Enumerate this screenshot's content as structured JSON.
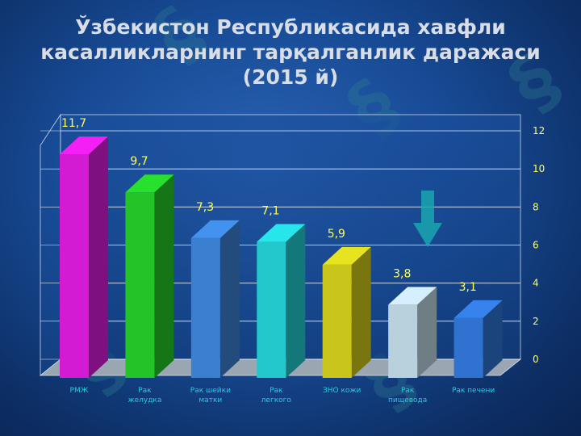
{
  "title": {
    "line1": "Ўзбекистон Республикасида хавфли",
    "line2": "касалликларнинг тарқалганлик даражаси",
    "line3": "(2015 й)"
  },
  "chart_data": {
    "type": "bar",
    "title": "Ўзбекистон Республикасида хавфли касалликларнинг тарқалганлик даражаси (2015 й)",
    "categories": [
      "РМЖ",
      "Рак желудка",
      "Рак шейки матки",
      "Рак легкого",
      "ЗНО кожи",
      "Рак пищевода",
      "Рак печени"
    ],
    "values": [
      11.7,
      9.7,
      7.3,
      7.1,
      5.9,
      3.8,
      3.1
    ],
    "value_labels": [
      "11,7",
      "9,7",
      "7,3",
      "7,1",
      "5,9",
      "3,8",
      "3,1"
    ],
    "bar_colors": [
      "#d41bd4",
      "#22c427",
      "#3a7fd0",
      "#22c8cc",
      "#c9c51a",
      "#b9d0dd",
      "#2f72cf"
    ],
    "ylim": [
      0,
      12
    ],
    "yticks": [
      0,
      2,
      4,
      6,
      8,
      10,
      12
    ],
    "grid": true,
    "y_axis_side": "right",
    "value_label_color": "#ffff55",
    "category_label_color": "#1fd0e0"
  },
  "colors": {
    "background": "#174a94",
    "title": "#d8dde6",
    "watermark": "#2f7d8f",
    "arrow": "#1aa6b0"
  },
  "decorations": {
    "watermark_icon": "swirl-logo-watermark",
    "arrow_icon": "down-arrow-icon"
  }
}
